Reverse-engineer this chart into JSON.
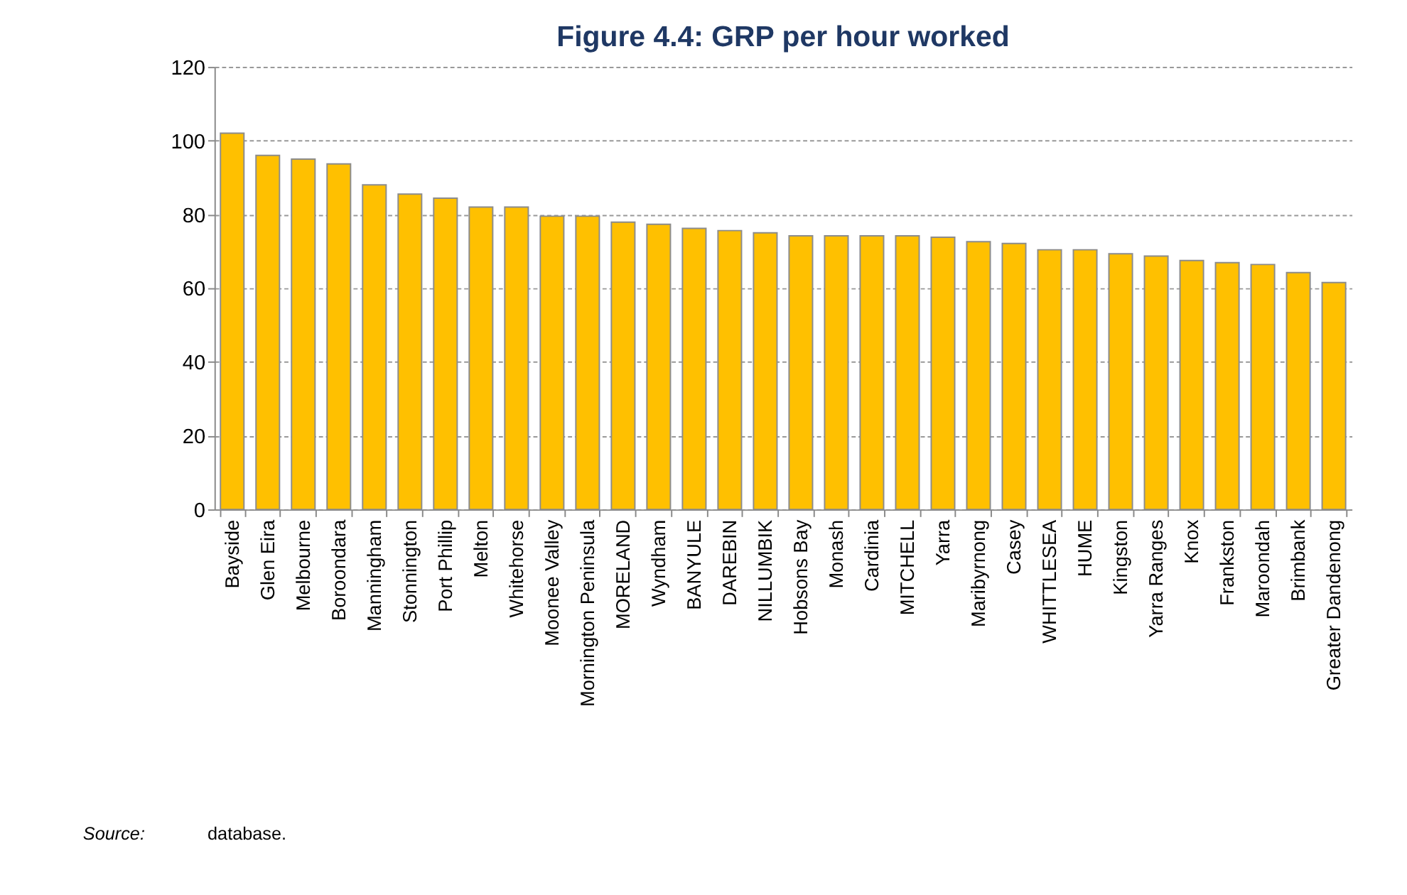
{
  "chart_data": {
    "type": "bar",
    "title": "Figure 4.4:  GRP per hour worked",
    "categories": [
      "Bayside",
      "Glen Eira",
      "Melbourne",
      "Boroondara",
      "Manningham",
      "Stonnington",
      "Port Phillip",
      "Melton",
      "Whitehorse",
      "Moonee Valley",
      "Mornington Peninsula",
      "MORELAND",
      "Wyndham",
      "BANYULE",
      "DAREBIN",
      "NILLUMBIK",
      "Hobsons Bay",
      "Monash",
      "Cardinia",
      "MITCHELL",
      "Yarra",
      "Maribyrnong",
      "Casey",
      "WHITTLESEA",
      "HUME",
      "Kingston",
      "Yarra Ranges",
      "Knox",
      "Frankston",
      "Maroondah",
      "Brimbank",
      "Greater Dandenong"
    ],
    "values": [
      102,
      96,
      95,
      93.7,
      88,
      85.5,
      84.4,
      82,
      82,
      79.5,
      79.5,
      77.9,
      77.3,
      76.2,
      75.6,
      75,
      74.2,
      74.2,
      74.2,
      74.2,
      73.8,
      72.6,
      72.1,
      70.4,
      70.4,
      69.3,
      68.7,
      67.5,
      66.9,
      66.4,
      64.2,
      61.5
    ],
    "color": "#ffc000",
    "ylim": [
      0,
      120
    ],
    "yticks": [
      0,
      20,
      40,
      60,
      80,
      100,
      120
    ],
    "grid": "y",
    "annotations": [
      "Source:",
      "database."
    ]
  }
}
